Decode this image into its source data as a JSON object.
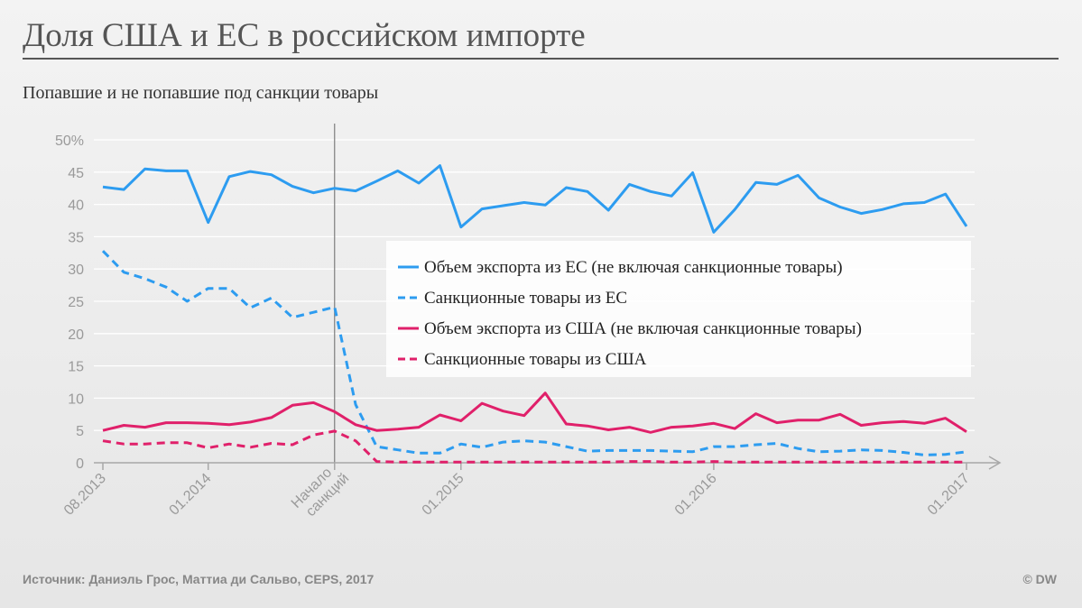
{
  "title": "Доля США и ЕС в российском импорте",
  "subtitle": "Попавшие и не попавшие под санкции товары",
  "footer": {
    "source": "Источник: Даниэль Грос, Маттиа ди Сальво, CEPS, 2017",
    "copyright": "© DW"
  },
  "colors": {
    "eu": "#2d9cf0",
    "us": "#e0206a",
    "grid": "#ffffff",
    "axis": "#a8a8a8",
    "marker": "#7d7d7d"
  },
  "chart_data": {
    "type": "line",
    "x_count": 42,
    "ylim": [
      0,
      50
    ],
    "yticks": [
      0,
      5,
      10,
      15,
      20,
      25,
      30,
      35,
      40,
      45,
      50
    ],
    "yticks_labels": [
      "0",
      "5",
      "10",
      "15",
      "20",
      "25",
      "30",
      "35",
      "40",
      "45",
      "50%"
    ],
    "xticks": [
      {
        "index": 0,
        "label": "08.2013"
      },
      {
        "index": 5,
        "label": "01.2014"
      },
      {
        "index": 11,
        "label": "Начало санкций"
      },
      {
        "index": 17,
        "label": "01.2015"
      },
      {
        "index": 29,
        "label": "01.2016"
      },
      {
        "index": 41,
        "label": "01.2017"
      }
    ],
    "vertical_marker_index": 11,
    "legend_placement": "center-right",
    "grid": true,
    "series": [
      {
        "name": "Объем экспорта из ЕС (не включая санкционные товары)",
        "color_key": "eu",
        "dashed": false,
        "values": [
          42.7,
          42.3,
          45.5,
          45.2,
          45.2,
          37.2,
          44.3,
          45.1,
          44.6,
          42.8,
          41.8,
          42.5,
          42.1,
          43.6,
          45.2,
          43.3,
          46.0,
          36.5,
          39.3,
          39.8,
          40.3,
          39.9,
          42.6,
          42.0,
          39.1,
          43.1,
          42.0,
          41.3,
          44.9,
          35.7,
          39.2,
          43.4,
          43.1,
          44.5,
          41.0,
          39.6,
          38.6,
          39.2,
          40.1,
          40.3,
          41.6,
          36.6
        ]
      },
      {
        "name": "Санкционные товары из ЕС",
        "color_key": "eu",
        "dashed": true,
        "values": [
          32.8,
          29.5,
          28.5,
          27.2,
          25.0,
          27.0,
          27.0,
          24.0,
          25.5,
          22.5,
          23.3,
          24.1,
          9.0,
          2.5,
          2.0,
          1.5,
          1.5,
          2.9,
          2.4,
          3.2,
          3.4,
          3.2,
          2.5,
          1.8,
          1.9,
          1.9,
          1.9,
          1.8,
          1.7,
          2.5,
          2.5,
          2.8,
          3.0,
          2.2,
          1.7,
          1.8,
          2.0,
          1.9,
          1.6,
          1.2,
          1.3,
          1.7
        ]
      },
      {
        "name": "Объем экспорта из США (не включая санкционные товары)",
        "color_key": "us",
        "dashed": false,
        "values": [
          5.0,
          5.8,
          5.5,
          6.2,
          6.2,
          6.1,
          5.9,
          6.3,
          7.0,
          8.9,
          9.3,
          7.9,
          5.9,
          5.0,
          5.2,
          5.5,
          7.4,
          6.5,
          9.2,
          8.0,
          7.3,
          10.8,
          6.0,
          5.7,
          5.1,
          5.5,
          4.7,
          5.5,
          5.7,
          6.1,
          5.3,
          7.6,
          6.2,
          6.6,
          6.6,
          7.5,
          5.8,
          6.2,
          6.4,
          6.1,
          6.9,
          4.8
        ]
      },
      {
        "name": "Санкционные товары из США",
        "color_key": "us",
        "dashed": true,
        "values": [
          3.4,
          2.9,
          2.9,
          3.1,
          3.1,
          2.3,
          2.9,
          2.4,
          3.0,
          2.8,
          4.3,
          4.9,
          3.4,
          0.2,
          0.1,
          0.1,
          0.1,
          0.1,
          0.1,
          0.1,
          0.1,
          0.1,
          0.1,
          0.1,
          0.1,
          0.2,
          0.2,
          0.1,
          0.1,
          0.2,
          0.1,
          0.1,
          0.1,
          0.1,
          0.1,
          0.1,
          0.1,
          0.1,
          0.1,
          0.1,
          0.1,
          0.1
        ]
      }
    ]
  }
}
